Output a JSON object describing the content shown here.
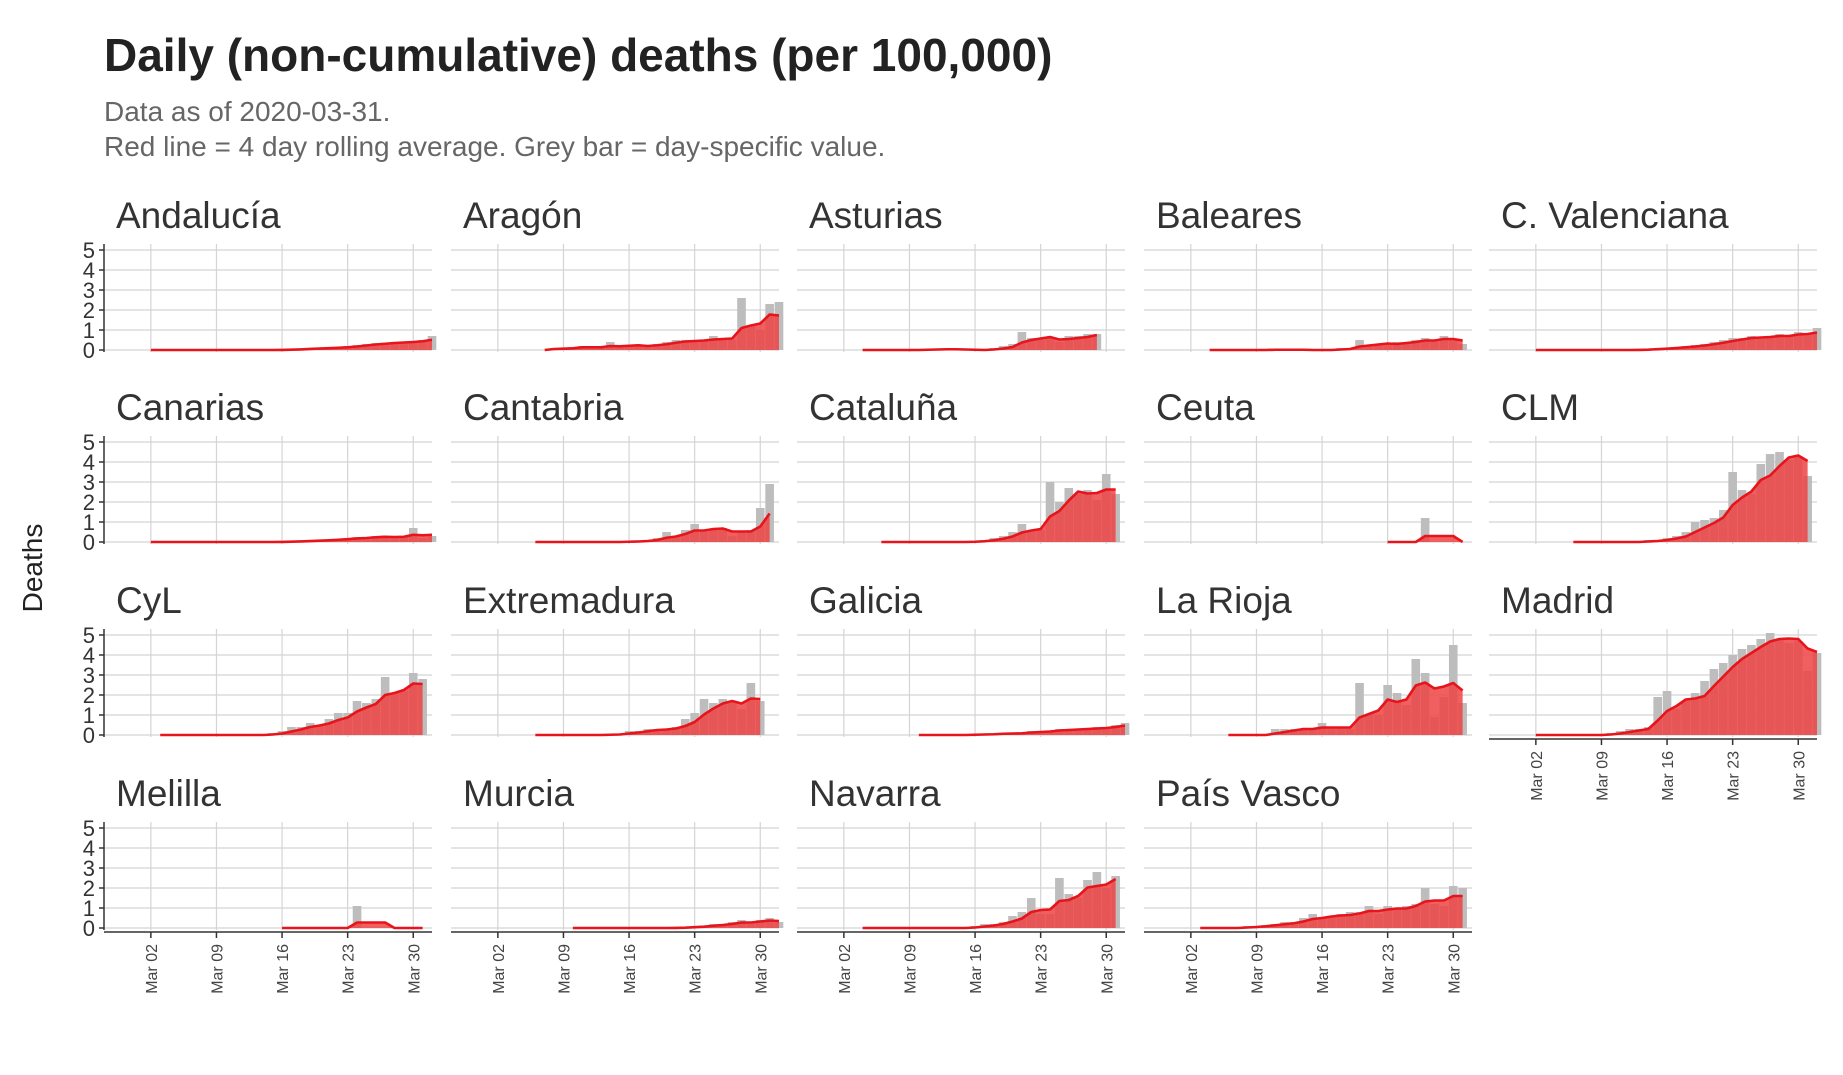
{
  "title": "Daily (non-cumulative) deaths (per 100,000)",
  "subtitle_lines": [
    "Data as of 2020-03-31.",
    "Red line = 4 day rolling average. Grey bar = day-specific value."
  ],
  "colors": {
    "bar": "#bdbdbd",
    "line": "#e8141b",
    "area": "#ef4444",
    "grid": "#d4d4d4",
    "axis": "#333333"
  },
  "chart_data": {
    "type": "bar",
    "facet_layout": "5 columns x 4 rows, shared y scale",
    "xlabel": "",
    "ylabel": "Deaths",
    "x_domain": [
      "2020-02-26",
      "2020-04-01"
    ],
    "x_ticks": [
      "2020-03-02",
      "2020-03-09",
      "2020-03-16",
      "2020-03-23",
      "2020-03-30"
    ],
    "x_tick_labels": [
      "Mar 02",
      "Mar 09",
      "Mar 16",
      "Mar 23",
      "Mar 30"
    ],
    "ylim": [
      0,
      5.2
    ],
    "y_ticks": [
      0,
      1,
      2,
      3,
      4,
      5
    ],
    "grid": true,
    "series_legend": "Grey bar = day-specific value; red line = 4 day rolling average",
    "facets": [
      {
        "region": "Andalucía",
        "start_date": "2020-03-02",
        "values": [
          0,
          0,
          0,
          0,
          0,
          0,
          0,
          0,
          0,
          0,
          0,
          0,
          0,
          0,
          0.02,
          0.04,
          0.06,
          0.1,
          0.1,
          0.1,
          0.15,
          0.2,
          0.25,
          0.3,
          0.35,
          0.35,
          0.4,
          0.4,
          0.45,
          0.5,
          0.7
        ]
      },
      {
        "region": "Aragón",
        "start_date": "2020-03-07",
        "values": [
          0,
          0.1,
          0.1,
          0.15,
          0.2,
          0.1,
          0.1,
          0.4,
          0.15,
          0.2,
          0.2,
          0.25,
          0.3,
          0.4,
          0.5,
          0.5,
          0.4,
          0.5,
          0.7,
          0.6,
          0.5,
          2.6,
          1.2,
          1.0,
          2.3,
          2.4
        ]
      },
      {
        "region": "Asturias",
        "start_date": "2020-03-04",
        "values": [
          0,
          0,
          0,
          0,
          0,
          0,
          0,
          0.05,
          0.05,
          0.05,
          0,
          0,
          0,
          0,
          0.1,
          0.2,
          0.3,
          0.9,
          0.6,
          0.5,
          0.6,
          0.4,
          0.7,
          0.7,
          0.8,
          0.8
        ]
      },
      {
        "region": "Baleares",
        "start_date": "2020-03-04",
        "values": [
          0,
          0,
          0,
          0,
          0,
          0,
          0,
          0.05,
          0,
          0,
          0,
          0,
          0,
          0,
          0.1,
          0.1,
          0.5,
          0.2,
          0.3,
          0.3,
          0.4,
          0.4,
          0.5,
          0.6,
          0.4,
          0.7,
          0.5,
          0.3
        ]
      },
      {
        "region": "C. Valenciana",
        "start_date": "2020-03-02",
        "values": [
          0,
          0,
          0,
          0,
          0,
          0,
          0,
          0,
          0,
          0,
          0,
          0.02,
          0.05,
          0.1,
          0.1,
          0.15,
          0.2,
          0.25,
          0.3,
          0.4,
          0.5,
          0.6,
          0.6,
          0.7,
          0.6,
          0.7,
          0.8,
          0.7,
          0.9,
          0.8,
          1.1
        ]
      },
      {
        "region": "Canarias",
        "start_date": "2020-03-02",
        "values": [
          0,
          0,
          0,
          0,
          0,
          0,
          0,
          0,
          0,
          0,
          0,
          0,
          0,
          0,
          0.02,
          0.04,
          0.05,
          0.08,
          0.1,
          0.12,
          0.15,
          0.2,
          0.25,
          0.2,
          0.3,
          0.3,
          0.2,
          0.25,
          0.7,
          0.2,
          0.3
        ]
      },
      {
        "region": "Cantabria",
        "start_date": "2020-03-06",
        "values": [
          0,
          0,
          0,
          0,
          0,
          0,
          0,
          0,
          0,
          0,
          0.05,
          0.05,
          0.1,
          0.2,
          0.5,
          0.3,
          0.6,
          0.9,
          0.5,
          0.6,
          0.7,
          0.3,
          0.5,
          0.6,
          1.7,
          2.9
        ]
      },
      {
        "region": "Cataluña",
        "start_date": "2020-03-06",
        "values": [
          0,
          0,
          0,
          0,
          0,
          0,
          0,
          0,
          0,
          0,
          0.05,
          0.1,
          0.2,
          0.3,
          0.5,
          0.9,
          0.6,
          0.6,
          3.0,
          2.0,
          2.7,
          2.4,
          2.6,
          2.1,
          3.4,
          2.4
        ]
      },
      {
        "region": "Ceuta",
        "start_date": "2020-03-23",
        "values": [
          0,
          0,
          0,
          0,
          1.2,
          0,
          0,
          0,
          0
        ]
      },
      {
        "region": "CLM",
        "start_date": "2020-03-06",
        "values": [
          0,
          0,
          0,
          0,
          0,
          0,
          0,
          0,
          0.1,
          0.1,
          0.2,
          0.3,
          0.5,
          1.0,
          1.1,
          1.2,
          1.6,
          3.5,
          2.6,
          2.4,
          3.9,
          4.4,
          4.5,
          4.1,
          4.3,
          3.3
        ]
      },
      {
        "region": "CyL",
        "start_date": "2020-03-03",
        "values": [
          0,
          0,
          0,
          0,
          0,
          0,
          0,
          0,
          0,
          0,
          0,
          0,
          0.1,
          0.2,
          0.4,
          0.4,
          0.6,
          0.5,
          0.8,
          1.1,
          1.1,
          1.7,
          1.6,
          1.8,
          2.9,
          2.1,
          2.2,
          3.1,
          2.8
        ]
      },
      {
        "region": "Extremadura",
        "start_date": "2020-03-06",
        "values": [
          0,
          0,
          0,
          0,
          0,
          0,
          0,
          0,
          0.05,
          0.05,
          0.2,
          0.2,
          0.3,
          0.3,
          0.3,
          0.4,
          0.8,
          1.1,
          1.8,
          1.6,
          1.8,
          1.6,
          1.3,
          2.6,
          1.7
        ]
      },
      {
        "region": "Galicia",
        "start_date": "2020-03-10",
        "values": [
          0,
          0,
          0,
          0,
          0,
          0,
          0.05,
          0.05,
          0.05,
          0.1,
          0.1,
          0.1,
          0.2,
          0.2,
          0.2,
          0.3,
          0.3,
          0.3,
          0.3,
          0.4,
          0.4,
          0.5,
          0.6
        ]
      },
      {
        "region": "La Rioja",
        "start_date": "2020-03-06",
        "values": [
          0,
          0,
          0,
          0,
          0,
          0.3,
          0.3,
          0.3,
          0.3,
          0.3,
          0.6,
          0.3,
          0.3,
          0.3,
          2.6,
          1.0,
          1.0,
          2.5,
          2.1,
          1.5,
          3.8,
          3.1,
          0.9,
          1.9,
          4.5,
          1.6
        ]
      },
      {
        "region": "Madrid",
        "start_date": "2020-03-02",
        "values": [
          0,
          0,
          0,
          0,
          0,
          0,
          0,
          0,
          0.1,
          0.2,
          0.3,
          0.3,
          0.4,
          1.9,
          2.2,
          1.3,
          1.7,
          2.1,
          2.7,
          3.3,
          3.6,
          4.0,
          4.3,
          4.5,
          4.8,
          5.1,
          4.8,
          4.6,
          4.7,
          3.2,
          4.1
        ]
      },
      {
        "region": "Melilla",
        "start_date": "2020-03-16",
        "values": [
          0,
          0,
          0,
          0,
          0,
          0,
          0,
          0,
          1.1,
          0,
          0,
          0,
          0,
          0,
          0,
          0
        ]
      },
      {
        "region": "Murcia",
        "start_date": "2020-03-10",
        "values": [
          0,
          0,
          0,
          0,
          0,
          0,
          0,
          0,
          0,
          0,
          0,
          0.02,
          0.05,
          0.1,
          0.1,
          0.2,
          0.2,
          0.3,
          0.4,
          0.2,
          0.4,
          0.5,
          0.3
        ]
      },
      {
        "region": "Navarra",
        "start_date": "2020-03-04",
        "values": [
          0,
          0,
          0,
          0,
          0,
          0,
          0,
          0,
          0,
          0,
          0,
          0,
          0.1,
          0.2,
          0.2,
          0.3,
          0.6,
          0.8,
          1.5,
          0.7,
          0.7,
          2.5,
          1.7,
          1.5,
          2.4,
          2.8,
          2.0,
          2.6
        ]
      },
      {
        "region": "País Vasco",
        "start_date": "2020-03-03",
        "values": [
          0,
          0,
          0,
          0,
          0,
          0.1,
          0.1,
          0.15,
          0.2,
          0.3,
          0.3,
          0.5,
          0.7,
          0.5,
          0.6,
          0.7,
          0.8,
          0.8,
          1.1,
          0.7,
          1.1,
          1.0,
          1.1,
          1.2,
          2.0,
          1.2,
          1.1,
          2.1,
          2.0
        ]
      }
    ]
  }
}
